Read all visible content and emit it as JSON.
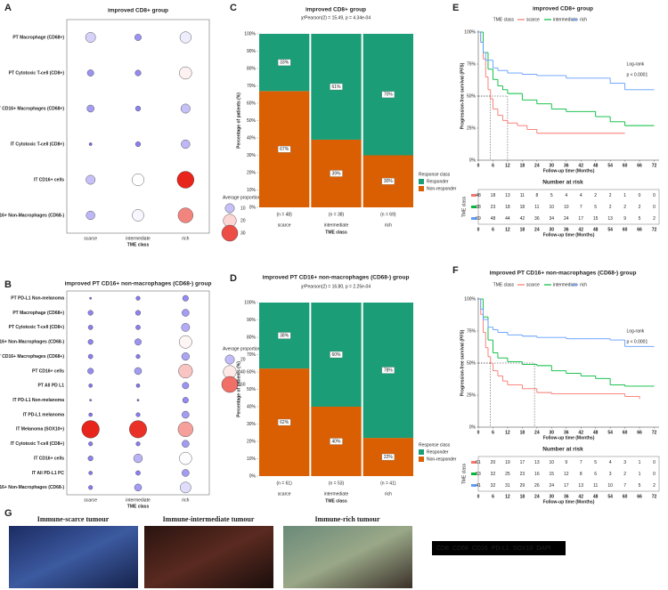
{
  "chart_data": [
    {
      "type": "dotplot",
      "panel_label": "A",
      "title": "improved  CD8+ group",
      "x_label": "TME class",
      "categories": [
        "scarce",
        "intermediate",
        "rich"
      ],
      "series": [
        {
          "name": "PT Macrophage (CD68+)",
          "values": [
            12,
            5,
            15
          ]
        },
        {
          "name": "PT Cytotoxic T-cell (CD8+)",
          "values": [
            5,
            4,
            18
          ]
        },
        {
          "name": "PT CD16+ Macrophages (CD68+)",
          "values": [
            6,
            3,
            10
          ]
        },
        {
          "name": "IT Cytotoxic T-cell (CD8+)",
          "values": [
            1,
            3,
            9
          ]
        },
        {
          "name": "IT CD16+ cells",
          "values": [
            10,
            17,
            33
          ]
        },
        {
          "name": "IT CD16+ Non-Macrophages (CD68-)",
          "values": [
            9,
            16,
            26
          ]
        }
      ],
      "legend_title": "Average proportion",
      "size_legend": [
        10,
        20,
        30
      ],
      "colorlim": [
        1,
        33
      ],
      "colors": [
        "#7a6ff0",
        "#ffffff",
        "#e8251a"
      ]
    },
    {
      "type": "dotplot",
      "panel_label": "B",
      "title": "improved PT CD16+ non-macrophages (CD68-) group",
      "x_label": "TME class",
      "categories": [
        "scarce",
        "intermediate",
        "rich"
      ],
      "series": [
        {
          "name": "PT PD-L1 Non-melanoma",
          "values": [
            1,
            4,
            8
          ]
        },
        {
          "name": "PT Macrophage (CD68+)",
          "values": [
            6,
            6,
            12
          ]
        },
        {
          "name": "PT Cytotoxic T-cell (CD8+)",
          "values": [
            5,
            5,
            16
          ]
        },
        {
          "name": "PT CD16+ Non-Macrophages (CD68-)",
          "values": [
            6,
            10,
            38
          ]
        },
        {
          "name": "PT CD16+ Macrophages (CD68+)",
          "values": [
            5,
            4,
            14
          ]
        },
        {
          "name": "PT CD16+ cells",
          "values": [
            8,
            12,
            46
          ]
        },
        {
          "name": "PT All PD L1",
          "values": [
            3,
            3,
            10
          ]
        },
        {
          "name": "IT PD-L1 Non-melanoma",
          "values": [
            1,
            1,
            8
          ]
        },
        {
          "name": "IT PD-L1 melanoma",
          "values": [
            3,
            4,
            12
          ]
        },
        {
          "name": "IT Melanoma (SOX10+)",
          "values": [
            72,
            70,
            52
          ]
        },
        {
          "name": "IT Cytotoxic T-cell (CD8+)",
          "values": [
            4,
            4,
            12
          ]
        },
        {
          "name": "IT CD16+ cells",
          "values": [
            6,
            18,
            36
          ]
        },
        {
          "name": "IT All PD-L1 PC",
          "values": [
            3,
            5,
            12
          ]
        },
        {
          "name": "IT CD16+ Non-Macrophages (CD68-)",
          "values": [
            4,
            12,
            28
          ]
        }
      ],
      "legend_title": "Average proportion",
      "size_legend": [
        20,
        40,
        60
      ],
      "colorlim": [
        1,
        72
      ],
      "colors": [
        "#7a6ff0",
        "#ffffff",
        "#e8251a"
      ]
    },
    {
      "type": "stacked_bar",
      "panel_label": "C",
      "title": "improved  CD8+ group",
      "subtitle": "χ²Pearson(2) = 15.49, p = 4.34e-04",
      "y_label": "Percentage of patients (%)",
      "x_label": "TME class",
      "categories": [
        "scarce",
        "intermediate",
        "rich"
      ],
      "n_labels": [
        "(n = 48)",
        "(n = 38)",
        "(n = 69)"
      ],
      "series": [
        {
          "name": "Non-responder",
          "color": "#d95f02",
          "values": [
            67,
            39,
            30
          ],
          "value_labels": [
            "67%",
            "39%",
            "30%"
          ]
        },
        {
          "name": "Responder",
          "color": "#1b9e77",
          "values": [
            33,
            61,
            70
          ],
          "value_labels": [
            "33%",
            "61%",
            "70%"
          ]
        }
      ],
      "legend_title": "Response class",
      "ylim": [
        0,
        100
      ],
      "yticks": [
        {
          "value": 0,
          "label": "0%"
        },
        {
          "value": 10,
          "label": "10%"
        },
        {
          "value": 20,
          "label": "20%"
        },
        {
          "value": 30,
          "label": "30%"
        },
        {
          "value": 40,
          "label": "40%"
        },
        {
          "value": 50,
          "label": "50%"
        },
        {
          "value": 60,
          "label": "60%"
        },
        {
          "value": 70,
          "label": "70%"
        },
        {
          "value": 80,
          "label": "80%"
        },
        {
          "value": 90,
          "label": "90%"
        },
        {
          "value": 100,
          "label": "100%"
        }
      ]
    },
    {
      "type": "stacked_bar",
      "panel_label": "D",
      "title": "improved PT CD16+ non-macrophages (CD68-) group",
      "subtitle": "χ²Pearson(2) = 16.80, p = 2.25e-04",
      "y_label": "Percentage of patients (%)",
      "x_label": "TME class",
      "categories": [
        "scarce",
        "intermediate",
        "rich"
      ],
      "n_labels": [
        "(n = 61)",
        "(n = 53)",
        "(n = 41)"
      ],
      "series": [
        {
          "name": "Non-responder",
          "color": "#d95f02",
          "values": [
            62,
            40,
            22
          ],
          "value_labels": [
            "62%",
            "40%",
            "22%"
          ]
        },
        {
          "name": "Responder",
          "color": "#1b9e77",
          "values": [
            38,
            60,
            78
          ],
          "value_labels": [
            "38%",
            "60%",
            "78%"
          ]
        }
      ],
      "legend_title": "Response class",
      "ylim": [
        0,
        100
      ],
      "yticks": [
        {
          "value": 0,
          "label": "0%"
        },
        {
          "value": 10,
          "label": "10%"
        },
        {
          "value": 20,
          "label": "20%"
        },
        {
          "value": 30,
          "label": "30%"
        },
        {
          "value": 40,
          "label": "40%"
        },
        {
          "value": 50,
          "label": "50%"
        },
        {
          "value": 60,
          "label": "60%"
        },
        {
          "value": 70,
          "label": "70%"
        },
        {
          "value": 80,
          "label": "80%"
        },
        {
          "value": 90,
          "label": "90%"
        },
        {
          "value": 100,
          "label": "100%"
        }
      ]
    },
    {
      "type": "km",
      "panel_label": "E",
      "title": "improved  CD8+ group",
      "legend_title": "TME class",
      "x_label": "Follow-up time (Months)",
      "y_label": "Progression-free survival (PFS)",
      "annotations": [
        "Log-rank",
        "p < 0.0001"
      ],
      "risk_title": "Number at risk",
      "medians": [
        5,
        12
      ],
      "median_level": 50,
      "series": [
        {
          "name": "scarce",
          "color": "#f8766d",
          "x": [
            0,
            1,
            2,
            3,
            4,
            5,
            6,
            8,
            10,
            12,
            16,
            20,
            24,
            36,
            60
          ],
          "values": [
            100,
            92,
            79,
            65,
            55,
            48,
            40,
            35,
            31,
            29,
            27,
            24,
            21,
            21,
            21
          ],
          "at_risk": [
            48,
            18,
            13,
            11,
            8,
            5,
            4,
            4,
            2,
            2,
            1,
            0,
            0
          ]
        },
        {
          "name": "intermediate",
          "color": "#00ba38",
          "x": [
            0,
            2,
            4,
            6,
            8,
            10,
            12,
            18,
            24,
            30,
            36,
            42,
            48,
            54,
            60,
            66,
            72
          ],
          "values": [
            100,
            84,
            71,
            63,
            58,
            55,
            52,
            47,
            44,
            40,
            38,
            38,
            34,
            30,
            27,
            27,
            27
          ],
          "at_risk": [
            38,
            23,
            18,
            18,
            11,
            10,
            10,
            7,
            5,
            2,
            2,
            2,
            0
          ]
        },
        {
          "name": "rich",
          "color": "#619cff",
          "x": [
            0,
            1,
            2,
            3,
            6,
            8,
            12,
            18,
            24,
            36,
            48,
            54,
            60,
            66,
            72
          ],
          "values": [
            100,
            92,
            84,
            78,
            72,
            70,
            68,
            67,
            66,
            64,
            64,
            60,
            55,
            55,
            55
          ],
          "at_risk": [
            69,
            48,
            44,
            42,
            36,
            34,
            24,
            17,
            15,
            13,
            9,
            5,
            2
          ]
        }
      ],
      "xlim": [
        0,
        74
      ],
      "xticks": [
        0,
        6,
        12,
        18,
        24,
        30,
        36,
        42,
        48,
        54,
        60,
        66,
        72
      ],
      "ylim": [
        0,
        100
      ],
      "yticks": [
        {
          "value": 0,
          "label": "0%"
        },
        {
          "value": 25,
          "label": "25%"
        },
        {
          "value": 50,
          "label": "50%"
        },
        {
          "value": 75,
          "label": "75%"
        },
        {
          "value": 100,
          "label": "100%"
        }
      ]
    },
    {
      "type": "km",
      "panel_label": "F",
      "title": "improved PT CD16+ non-macrophages (CD68-) group",
      "legend_title": "TME class",
      "x_label": "Follow-up time (Months)",
      "y_label": "Progression-free survival (PFS)",
      "annotations": [
        "Log-rank",
        "p < 0.0001"
      ],
      "risk_title": "Number at risk",
      "medians": [
        5,
        23
      ],
      "median_level": 50,
      "series": [
        {
          "name": "scarce",
          "color": "#f8766d",
          "x": [
            0,
            1,
            2,
            3,
            4,
            5,
            6,
            8,
            10,
            12,
            18,
            24,
            30,
            60,
            66
          ],
          "values": [
            100,
            88,
            74,
            62,
            55,
            50,
            44,
            40,
            36,
            33,
            30,
            27,
            26,
            24,
            22
          ],
          "at_risk": [
            61,
            20,
            19,
            17,
            13,
            10,
            9,
            7,
            5,
            4,
            3,
            1,
            0
          ]
        },
        {
          "name": "intermediate",
          "color": "#00ba38",
          "x": [
            0,
            2,
            4,
            6,
            8,
            12,
            18,
            24,
            30,
            36,
            42,
            48,
            54,
            60,
            72
          ],
          "values": [
            100,
            86,
            68,
            58,
            54,
            51,
            49,
            48,
            44,
            42,
            40,
            38,
            33,
            32,
            32
          ],
          "at_risk": [
            53,
            32,
            25,
            23,
            16,
            15,
            12,
            8,
            6,
            3,
            2,
            1,
            0
          ]
        },
        {
          "name": "rich",
          "color": "#619cff",
          "x": [
            0,
            1,
            2,
            4,
            6,
            8,
            12,
            18,
            24,
            36,
            48,
            54,
            60,
            72
          ],
          "values": [
            100,
            92,
            84,
            78,
            76,
            74,
            72,
            71,
            70,
            69,
            69,
            68,
            63,
            63
          ],
          "at_risk": [
            41,
            32,
            31,
            29,
            26,
            24,
            17,
            13,
            11,
            10,
            7,
            5,
            2
          ]
        }
      ],
      "xlim": [
        0,
        74
      ],
      "xticks": [
        0,
        6,
        12,
        18,
        24,
        30,
        36,
        42,
        48,
        54,
        60,
        66,
        72
      ],
      "ylim": [
        0,
        100
      ],
      "yticks": [
        {
          "value": 0,
          "label": "0%"
        },
        {
          "value": 25,
          "label": "25%"
        },
        {
          "value": 50,
          "label": "50%"
        },
        {
          "value": 75,
          "label": "75%"
        },
        {
          "value": 100,
          "label": "100%"
        }
      ]
    }
  ],
  "panel_g": {
    "panel_label": "G",
    "images": [
      "Immune-scarce tumour",
      "Immune-intermediate tumour",
      "Immune-rich tumour"
    ],
    "legend": [
      {
        "label": "CD8",
        "color": "#ffff33"
      },
      {
        "label": "CD68",
        "color": "#33dd33"
      },
      {
        "label": "CD16",
        "color": "#ff3333"
      },
      {
        "label": "PD-L1",
        "color": "#33ccff"
      },
      {
        "label": "SOX10",
        "color": "#ffffff"
      },
      {
        "label": "DAPI",
        "color": "#3344ff"
      }
    ]
  }
}
